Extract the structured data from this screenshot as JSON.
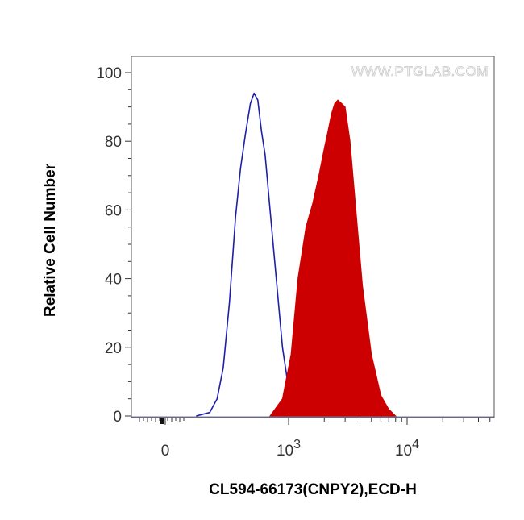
{
  "chart_data": {
    "type": "area",
    "watermark": "WWW.PTGLAB.COM",
    "xlabel": "CL594-66173(CNPY2),ECD-H",
    "ylabel": "Relative Cell Number",
    "ylim": [
      0,
      100
    ],
    "x_scale": "logicle",
    "y_ticks": [
      "0",
      "20",
      "40",
      "60",
      "80",
      "100"
    ],
    "x_ticks": [
      {
        "base": "0",
        "exp": ""
      },
      {
        "base": "10",
        "exp": "3"
      },
      {
        "base": "10",
        "exp": "4"
      }
    ],
    "colors": {
      "control": "#1f1fa8",
      "sample": "#cc0000"
    },
    "series": [
      {
        "style": "outline",
        "x": [
          250,
          360,
          420,
          470,
          520,
          570,
          610,
          650,
          690,
          720,
          750,
          780,
          810,
          850,
          900,
          950,
          1000,
          1080,
          1150
        ],
        "values": [
          0,
          1,
          5,
          14,
          33,
          58,
          72,
          82,
          91,
          94,
          92,
          83,
          76,
          60,
          40,
          20,
          8,
          2,
          0
        ]
      },
      {
        "style": "filled",
        "x": [
          850,
          950,
          1050,
          1200,
          1400,
          1600,
          1800,
          2000,
          2150,
          2300,
          2450,
          2600,
          2800,
          3000,
          3300,
          3700,
          4200,
          5000,
          6000,
          7000,
          8000
        ],
        "values": [
          0,
          5,
          18,
          40,
          55,
          62,
          70,
          78,
          83,
          88,
          91,
          92,
          91,
          90,
          80,
          60,
          38,
          18,
          6,
          2,
          0
        ]
      }
    ]
  }
}
